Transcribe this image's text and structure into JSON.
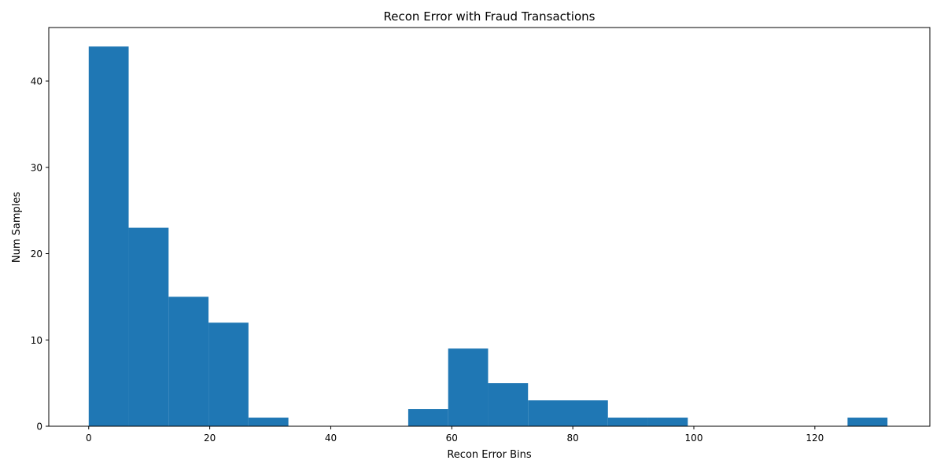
{
  "chart_data": {
    "type": "bar",
    "title": "Recon Error with Fraud Transactions",
    "xlabel": "Recon Error Bins",
    "ylabel": "Num Samples",
    "xlim": [
      -6.6,
      139.0
    ],
    "ylim": [
      0,
      46.2
    ],
    "x_ticks": [
      0,
      20,
      40,
      60,
      80,
      100,
      120
    ],
    "y_ticks": [
      0,
      10,
      20,
      30,
      40
    ],
    "bins": [
      {
        "start": 0.0,
        "end": 6.6,
        "value": 44
      },
      {
        "start": 6.6,
        "end": 13.2,
        "value": 23
      },
      {
        "start": 13.2,
        "end": 19.8,
        "value": 15
      },
      {
        "start": 19.8,
        "end": 26.4,
        "value": 12
      },
      {
        "start": 26.4,
        "end": 33.0,
        "value": 1
      },
      {
        "start": 33.0,
        "end": 39.6,
        "value": 0
      },
      {
        "start": 39.6,
        "end": 46.2,
        "value": 0
      },
      {
        "start": 46.2,
        "end": 52.8,
        "value": 0
      },
      {
        "start": 52.8,
        "end": 59.4,
        "value": 2
      },
      {
        "start": 59.4,
        "end": 66.0,
        "value": 9
      },
      {
        "start": 66.0,
        "end": 72.6,
        "value": 5
      },
      {
        "start": 72.6,
        "end": 79.2,
        "value": 3
      },
      {
        "start": 79.2,
        "end": 85.8,
        "value": 3
      },
      {
        "start": 85.8,
        "end": 92.4,
        "value": 1
      },
      {
        "start": 92.4,
        "end": 99.0,
        "value": 1
      },
      {
        "start": 99.0,
        "end": 105.6,
        "value": 0
      },
      {
        "start": 105.6,
        "end": 112.2,
        "value": 0
      },
      {
        "start": 112.2,
        "end": 118.8,
        "value": 0
      },
      {
        "start": 118.8,
        "end": 125.4,
        "value": 0
      },
      {
        "start": 125.4,
        "end": 132.0,
        "value": 1
      }
    ],
    "bar_color": "#1f77b4",
    "grid": false,
    "legend": "none"
  }
}
